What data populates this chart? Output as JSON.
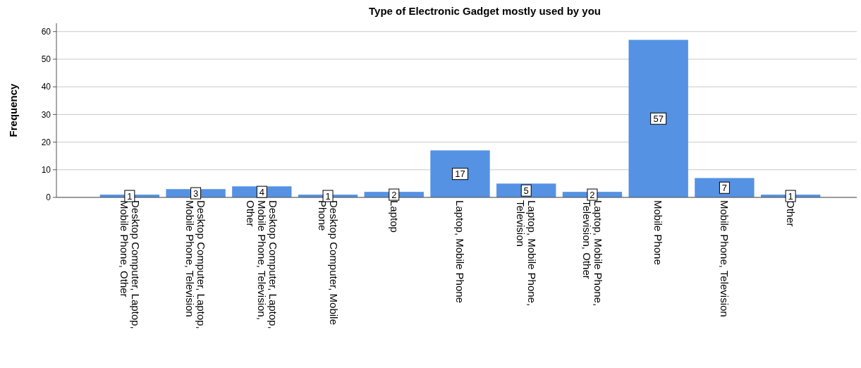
{
  "chart_data": {
    "type": "bar",
    "title": "Type of Electronic Gadget mostly used by you",
    "ylabel": "Frequency",
    "categories": [
      "Desktop Computer, Laptop, Mobile Phone, Other",
      "Desktop Computer, Laptop, Mobile Phone, Television",
      "Desktop Computer, Laptop, Mobile Phone, Television, Other",
      "Desktop Computer, Mobile Phone",
      "Laptop",
      "Laptop, Mobile Phone",
      "Laptop, Mobile Phone, Television",
      "Laptop, Mobile Phone, Television, Other",
      "Mobile Phone",
      "Mobile Phone, Television",
      "Other"
    ],
    "values": [
      1,
      3,
      4,
      1,
      2,
      17,
      5,
      2,
      57,
      7,
      1
    ],
    "color": "#5592e3",
    "ylim": [
      0,
      63
    ],
    "yticks": [
      0,
      10,
      20,
      30,
      40,
      50,
      60
    ],
    "grid": "y",
    "data_labels": true
  }
}
